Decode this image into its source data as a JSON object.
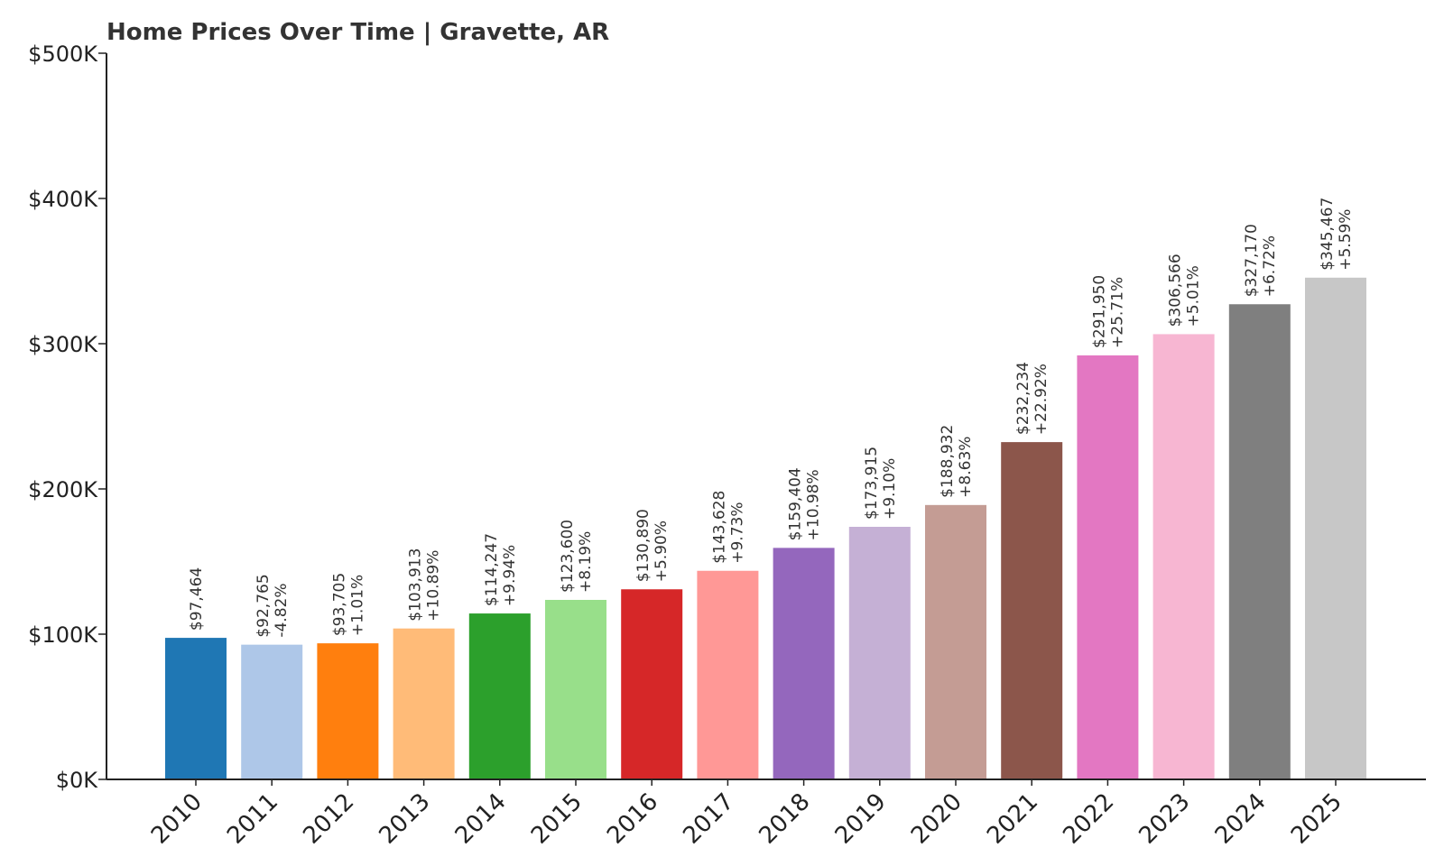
{
  "chart_data": {
    "type": "bar",
    "title": "Home Prices Over Time | Gravette, AR",
    "xlabel": "",
    "ylabel": "",
    "ylim": [
      0,
      500000
    ],
    "y_ticks": [
      {
        "value": 0,
        "label": "$0K"
      },
      {
        "value": 100000,
        "label": "$100K"
      },
      {
        "value": 200000,
        "label": "$200K"
      },
      {
        "value": 300000,
        "label": "$300K"
      },
      {
        "value": 400000,
        "label": "$400K"
      },
      {
        "value": 500000,
        "label": "$500K"
      }
    ],
    "categories": [
      "2010",
      "2011",
      "2012",
      "2013",
      "2014",
      "2015",
      "2016",
      "2017",
      "2018",
      "2019",
      "2020",
      "2021",
      "2022",
      "2023",
      "2024",
      "2025"
    ],
    "values": [
      97464,
      92765,
      93705,
      103913,
      114247,
      123600,
      130890,
      143628,
      159404,
      173915,
      188932,
      232234,
      291950,
      306566,
      327170,
      345467
    ],
    "value_labels": [
      "$97,464",
      "$92,765",
      "$93,705",
      "$103,913",
      "$114,247",
      "$123,600",
      "$130,890",
      "$143,628",
      "$159,404",
      "$173,915",
      "$188,932",
      "$232,234",
      "$291,950",
      "$306,566",
      "$327,170",
      "$345,467"
    ],
    "change_labels": [
      "",
      "-4.82%",
      "+1.01%",
      "+10.89%",
      "+9.94%",
      "+8.19%",
      "+5.90%",
      "+9.73%",
      "+10.98%",
      "+9.10%",
      "+8.63%",
      "+22.92%",
      "+25.71%",
      "+5.01%",
      "+6.72%",
      "+5.59%"
    ],
    "colors": [
      "#1f77b4",
      "#aec7e8",
      "#ff7f0e",
      "#ffbb78",
      "#2ca02c",
      "#98df8a",
      "#d62728",
      "#ff9896",
      "#9467bd",
      "#c5b0d5",
      "#c49c94",
      "#8c564b",
      "#e377c2",
      "#f7b6d2",
      "#7f7f7f",
      "#c7c7c7"
    ],
    "grid": false,
    "legend": "none"
  }
}
